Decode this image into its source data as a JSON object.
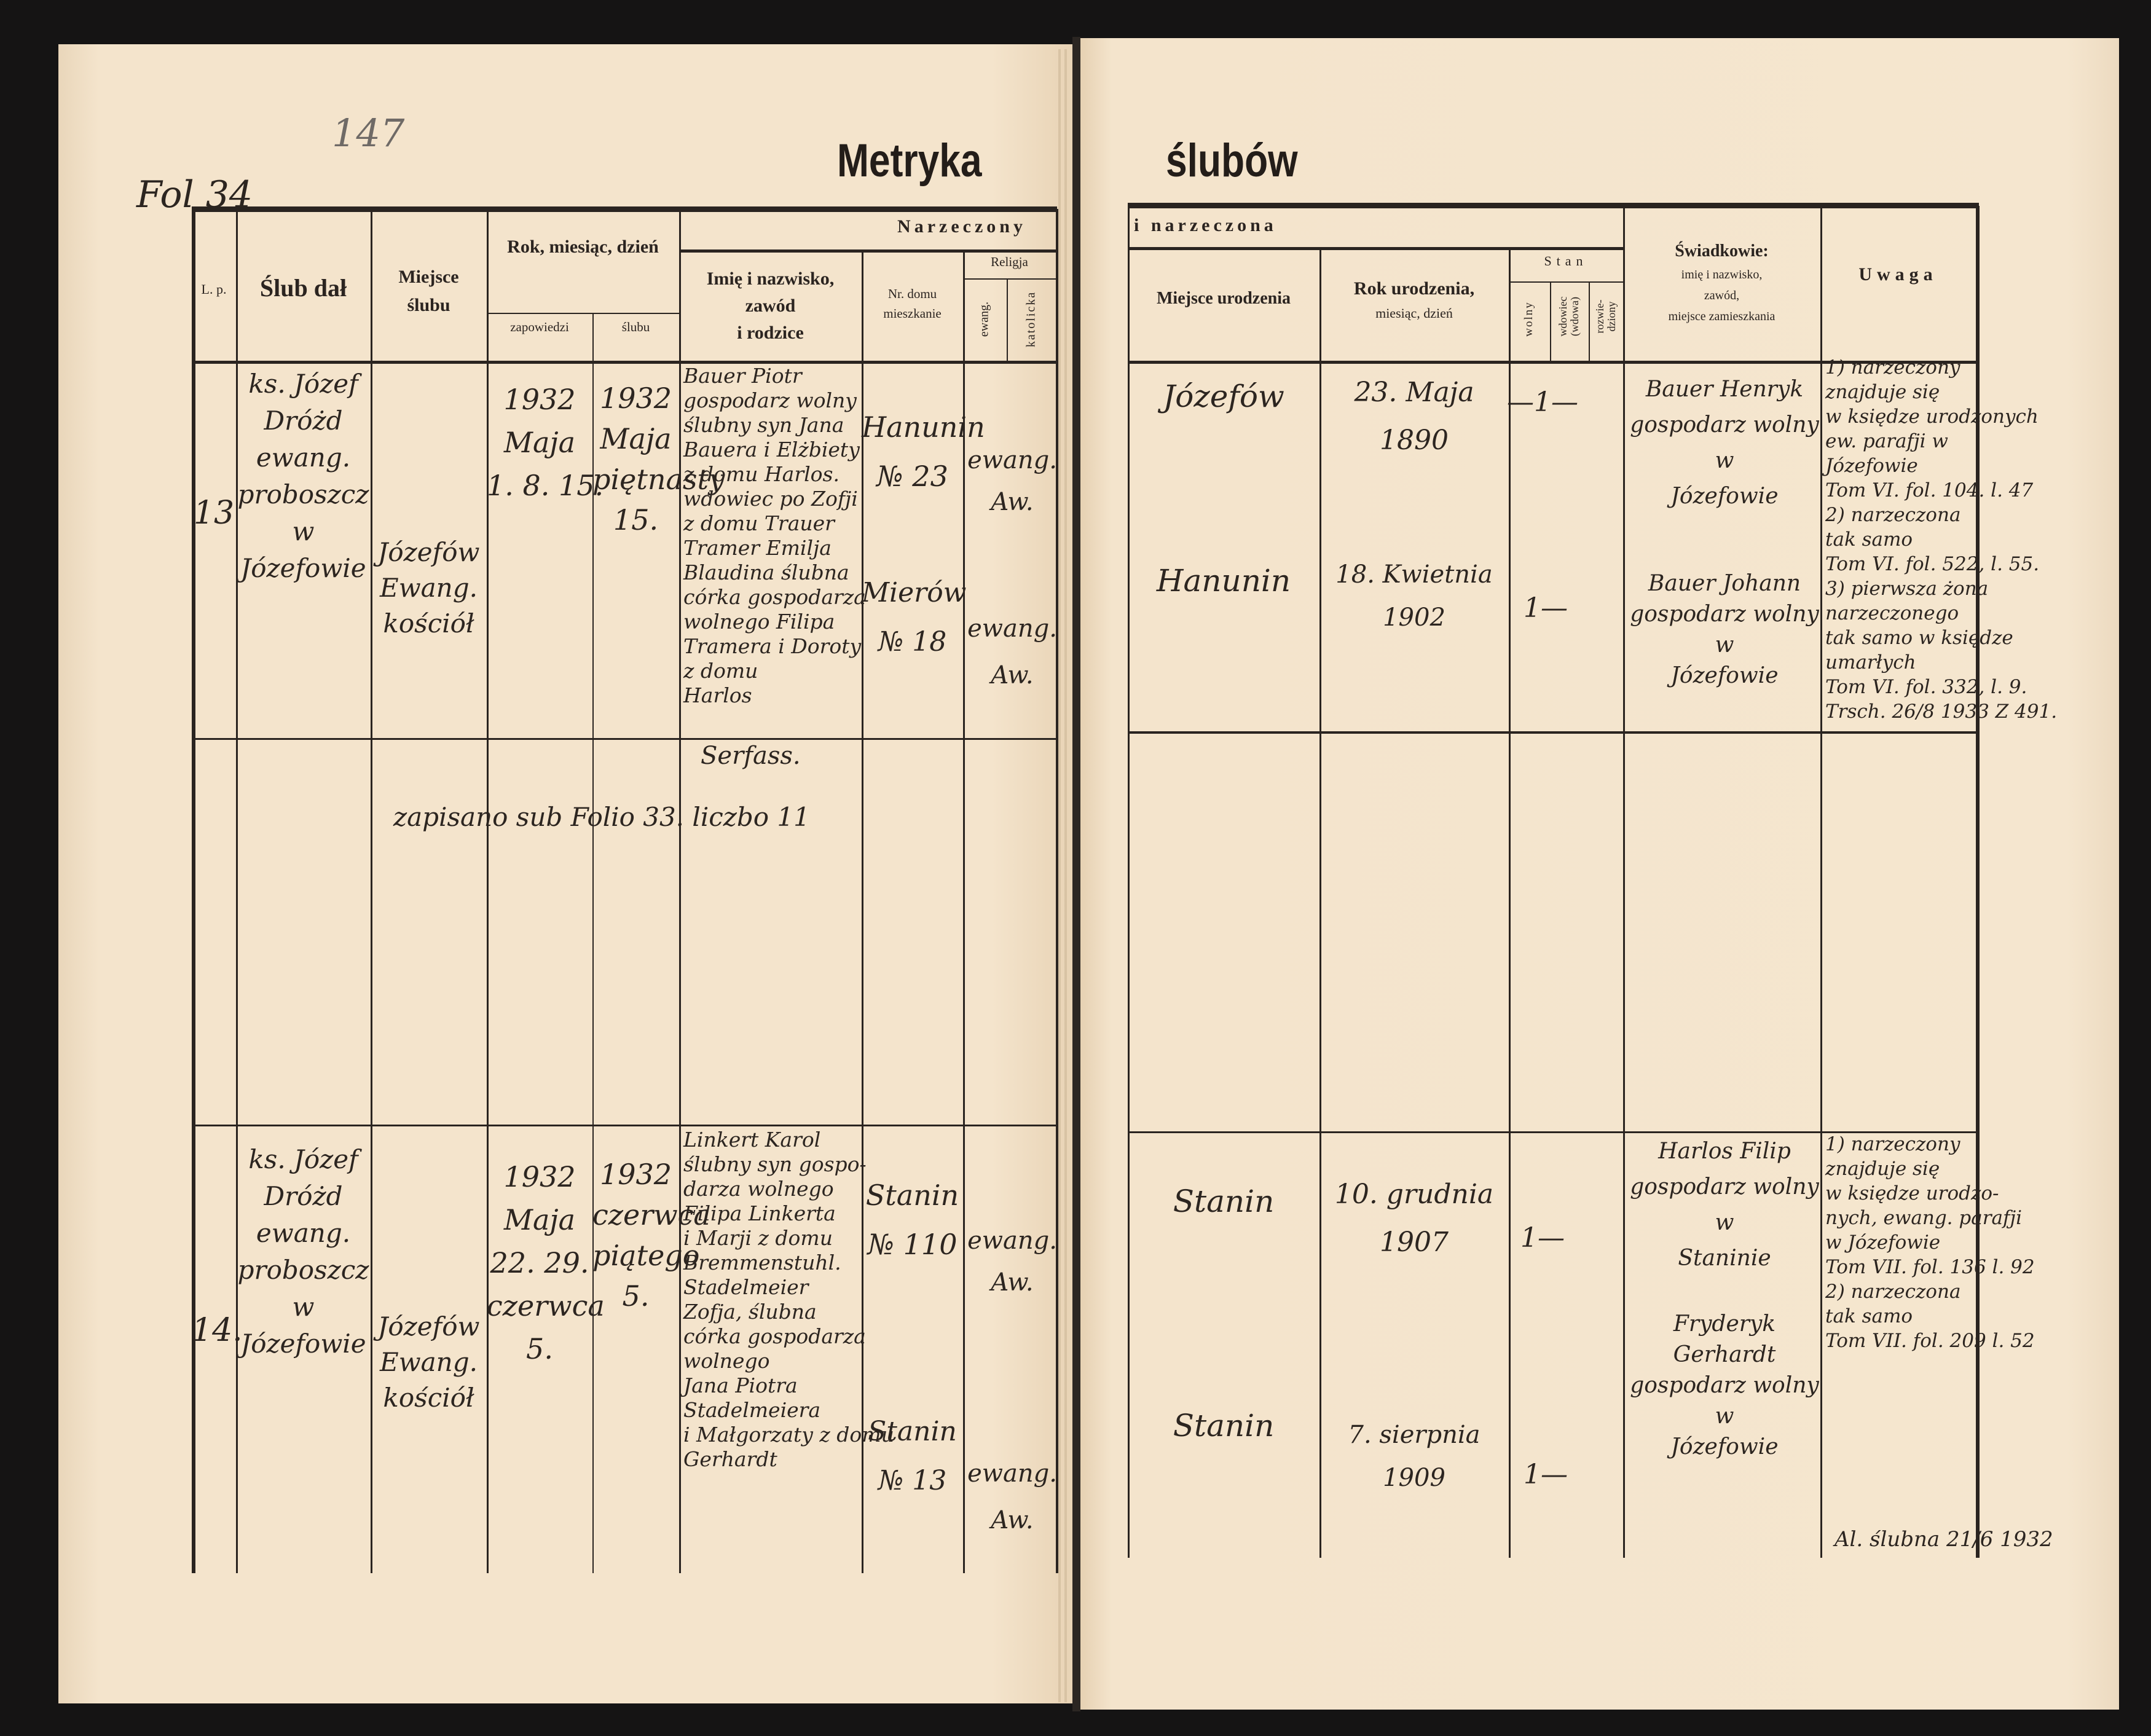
{
  "page": {
    "folio_pencil": "147",
    "folio": "Fol 34",
    "title_left": "Metryka",
    "title_right": "ślubów"
  },
  "headers": {
    "groom_group": "Narzeczony",
    "bride_group": "i narzeczona",
    "lp": "L. p.",
    "officiant": "Ślub dał",
    "place": [
      "Miejsce",
      "ślubu"
    ],
    "date_group": "Rok, miesiąc, dzień",
    "banns": "zapowiedzi",
    "wedding": "ślubu",
    "name": [
      "Imię i nazwisko,",
      "zawód",
      "i rodzice"
    ],
    "house": [
      "Nr. domu",
      "mieszkanie"
    ],
    "religion": "Religja",
    "religion_ev": "ewang.",
    "religion_cath": "katolicka",
    "birthplace": "Miejsce urodzenia",
    "birthdate": [
      "Rok urodzenia,",
      "miesiąc, dzień"
    ],
    "status": "Stan",
    "status_single": "wolny",
    "status_widowed": [
      "wdowiec",
      "(wdowa)"
    ],
    "status_divorced": [
      "rozwie-",
      "dziony"
    ],
    "witnesses": [
      "Świadkowie:",
      "imię i nazwisko,",
      "zawód,",
      "miejsce zamieszkania"
    ],
    "remarks": "Uwaga"
  },
  "entries": [
    {
      "lp": "13",
      "officiant": [
        "ks. Józef",
        "Dróżd",
        "ewang.",
        "proboszcz",
        "w",
        "Józefowie"
      ],
      "place": [
        "Józefów",
        "Ewang.",
        "kościół"
      ],
      "banns": [
        "1932",
        "Maja",
        "1. 8. 15."
      ],
      "wedding": [
        "1932",
        "Maja",
        "piętnasty",
        "15."
      ],
      "names": [
        "Bauer Piotr",
        "gospodarz wolny",
        "ślubny syn Jana",
        "Bauera i Elżbiety",
        "z domu Harlos.",
        "wdowiec po Zofji",
        "z domu Trauer",
        "Tramer Emilja",
        "Blaudina ślubna",
        "córka gospodarza",
        "wolnego Filipa",
        "Tramera i Doroty",
        "z domu",
        "Harlos"
      ],
      "groom_house": [
        "Hanunin",
        "№ 23"
      ],
      "bride_house": [
        "Mierów",
        "№ 18"
      ],
      "groom_religion": [
        "ewang.",
        "Aw."
      ],
      "bride_religion": [
        "ewang.",
        "Aw."
      ],
      "groom_birthplace": "Józefów",
      "bride_birthplace": "Hanunin",
      "groom_birthdate": [
        "23. Maja",
        "1890"
      ],
      "bride_birthdate": [
        "18. Kwietnia",
        "1902"
      ],
      "groom_status": "—1—",
      "bride_status": "1—",
      "witness_1": [
        "Bauer Henryk",
        "gospodarz wolny",
        "w",
        "Józefowie"
      ],
      "witness_2": [
        "Bauer Johann",
        "gospodarz wolny",
        "w",
        "Józefowie"
      ],
      "remarks": [
        "1) narzeczony",
        "znajduje się",
        "w księdze urodzonych",
        "ew. parafji w",
        "Józefowie",
        "Tom VI. fol. 104. l. 47",
        "2) narzeczona",
        "tak samo",
        "Tom VI. fol. 522, l. 55.",
        "3) pierwsza żona",
        "narzeczonego",
        "tak samo w księdze",
        "umarłych",
        "Tom VI. fol. 332, l. 9.",
        "Trsch. 26/8 1933 Z 491."
      ]
    },
    {
      "names": [
        "Serfass."
      ],
      "note": "zapisano sub Folio 33. liczbo 11"
    },
    {
      "lp": "14.",
      "officiant": [
        "ks. Józef",
        "Dróżd",
        "ewang.",
        "proboszcz",
        "w",
        "Józefowie"
      ],
      "place": [
        "Józefów",
        "Ewang.",
        "kościół"
      ],
      "banns": [
        "1932",
        "Maja",
        "22. 29.",
        "czerwca",
        "5."
      ],
      "wedding": [
        "1932",
        "czerwca",
        "piątego",
        "5."
      ],
      "names": [
        "Linkert Karol",
        "ślubny syn gospo-",
        "darza wolnego",
        "Filipa Linkerta",
        "i Marji z domu",
        "Bremmenstuhl.",
        "Stadelmeier",
        "Zofja, ślubna",
        "córka gospodarza",
        "wolnego",
        "Jana Piotra",
        "Stadelmeiera",
        "i Małgorzaty z domu",
        "Gerhardt"
      ],
      "groom_house": [
        "Stanin",
        "№ 110"
      ],
      "bride_house": [
        "Stanin",
        "№ 13"
      ],
      "groom_religion": [
        "ewang.",
        "Aw."
      ],
      "bride_religion": [
        "ewang.",
        "Aw."
      ],
      "groom_birthplace": "Stanin",
      "bride_birthplace": "Stanin",
      "groom_birthdate": [
        "10. grudnia",
        "1907"
      ],
      "bride_birthdate": [
        "7. sierpnia",
        "1909"
      ],
      "groom_status": "1—",
      "bride_status": "1—",
      "witness_1": [
        "Harlos Filip",
        "gospodarz wolny",
        "w",
        "Staninie"
      ],
      "witness_2": [
        "Fryderyk",
        "Gerhardt",
        "gospodarz wolny",
        "w",
        "Józefowie"
      ],
      "remarks": [
        "1) narzeczony",
        "znajduje się",
        "w księdze urodzo-",
        "nych, ewang. parafji",
        "w Józefowie",
        "Tom VII. fol. 136 l. 92",
        "2) narzeczona",
        "tak samo",
        "Tom VII. fol. 209 l. 52"
      ],
      "certificate": "Al. ślubna 21/6 1932"
    }
  ]
}
